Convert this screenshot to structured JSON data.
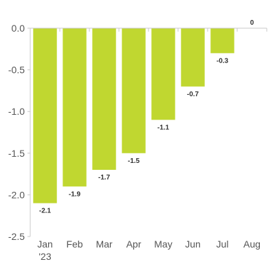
{
  "chart_data": {
    "type": "bar",
    "categories": [
      "Jan",
      "Feb",
      "Mar",
      "Apr",
      "May",
      "Jun",
      "Jul",
      "Aug"
    ],
    "category_sublabels": [
      "'23",
      "",
      "",
      "",
      "",
      "",
      "",
      ""
    ],
    "values": [
      -2.1,
      -1.9,
      -1.7,
      -1.5,
      -1.1,
      -0.7,
      -0.3,
      0
    ],
    "data_labels": [
      "-2.1",
      "-1.9",
      "-1.7",
      "-1.5",
      "-1.1",
      "-0.7",
      "-0.3",
      "0"
    ],
    "yticks": [
      0.0,
      -0.5,
      -1.0,
      -1.5,
      -2.0,
      -2.5
    ],
    "ytick_labels": [
      "0.0",
      "-0.5",
      "-1.0",
      "-1.5",
      "-2.0",
      "-2.5"
    ],
    "ylim": [
      -2.5,
      0
    ],
    "title": "",
    "xlabel": "",
    "ylabel": "",
    "grid": false,
    "bar_color": "#c0d730",
    "axis_color": "#c8c8c8"
  }
}
